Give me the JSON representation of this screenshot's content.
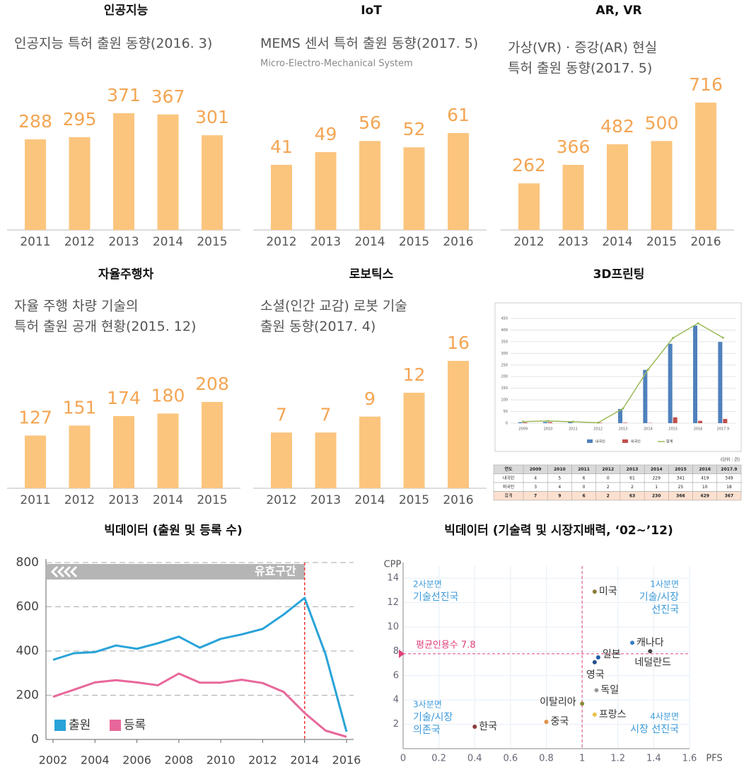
{
  "chart_data": [
    {
      "type": "bar",
      "heading": "인공지능",
      "title": "인공지능 특허 출원 동향(2016. 3)",
      "categories": [
        "2011",
        "2012",
        "2013",
        "2014",
        "2015"
      ],
      "values": [
        288,
        295,
        371,
        367,
        301
      ],
      "color": "#fbc57e",
      "label_color": "#f4a553"
    },
    {
      "type": "bar",
      "heading": "IoT",
      "title": "MEMS 센서 특허 출원 동향(2017. 5)",
      "subtitle": "Micro-Electro-Mechanical System",
      "categories": [
        "2012",
        "2013",
        "2014",
        "2015",
        "2016"
      ],
      "values": [
        41,
        49,
        56,
        52,
        61
      ],
      "color": "#fbc57e",
      "label_color": "#f4a553"
    },
    {
      "type": "bar",
      "heading": "AR, VR",
      "title": [
        "가상(VR) · 증강(AR) 현실",
        "특허 출원 동향(2017. 5)"
      ],
      "categories": [
        "2012",
        "2013",
        "2014",
        "2015",
        "2016"
      ],
      "values": [
        262,
        366,
        482,
        500,
        716
      ],
      "color": "#fbc57e",
      "label_color": "#f4a553"
    },
    {
      "type": "bar",
      "heading": "자율주행차",
      "title": [
        "자율 주행 차량 기술의",
        "특허 출원 공개 현황(2015. 12)"
      ],
      "categories": [
        "2011",
        "2012",
        "2013",
        "2014",
        "2015"
      ],
      "values": [
        127,
        151,
        174,
        180,
        208
      ],
      "color": "#fbc57e",
      "label_color": "#f4a553"
    },
    {
      "type": "bar",
      "heading": "로보틱스",
      "title": [
        "소셜(인간 교감) 로봇 기술",
        "출원 동향(2017. 4)"
      ],
      "categories": [
        "2012",
        "2013",
        "2014",
        "2015",
        "2016"
      ],
      "values": [
        7,
        7,
        9,
        12,
        16
      ],
      "color": "#fbc57e",
      "label_color": "#f4a553"
    },
    {
      "type": "combo",
      "heading": "3D프린팅",
      "categories": [
        "2009",
        "2010",
        "2011",
        "2012",
        "2013",
        "2014",
        "2015",
        "2016",
        "2017.9"
      ],
      "series": [
        {
          "name": "내국인",
          "color": "#4f81bd",
          "kind": "bar",
          "values": [
            4,
            5,
            6,
            0,
            61,
            229,
            341,
            419,
            349
          ]
        },
        {
          "name": "외국인",
          "color": "#c0504d",
          "kind": "bar",
          "values": [
            3,
            4,
            0,
            2,
            2,
            1,
            25,
            10,
            18
          ]
        },
        {
          "name": "합계",
          "color": "#9bbb59",
          "kind": "line",
          "values": [
            7,
            9,
            6,
            2,
            63,
            230,
            366,
            429,
            367
          ]
        }
      ],
      "ylim": [
        0,
        450
      ],
      "yticks": [
        0,
        50,
        100,
        150,
        200,
        250,
        300,
        350,
        400,
        450
      ],
      "grid": true,
      "table_header": "연도",
      "unit_note": "(단위 : 건)"
    },
    {
      "type": "line",
      "heading": "빅데이터 (출원 및 등록 수)",
      "x": [
        2002,
        2003,
        2004,
        2005,
        2006,
        2007,
        2008,
        2009,
        2010,
        2011,
        2012,
        2013,
        2014,
        2015,
        2016
      ],
      "series": [
        {
          "name": "출원",
          "color": "#29a3d8",
          "values": [
            360,
            390,
            395,
            425,
            410,
            435,
            465,
            415,
            455,
            475,
            500,
            565,
            640,
            385,
            35
          ]
        },
        {
          "name": "등록",
          "color": "#e8679b",
          "values": [
            193,
            225,
            258,
            268,
            258,
            245,
            298,
            257,
            257,
            270,
            255,
            215,
            120,
            40,
            12
          ]
        }
      ],
      "xlim": [
        2002,
        2016
      ],
      "xticks": [
        2002,
        2004,
        2006,
        2008,
        2010,
        2012,
        2014,
        2016
      ],
      "ylim": [
        0,
        800
      ],
      "yticks": [
        0,
        200,
        400,
        600,
        800
      ],
      "grid": true,
      "annotation": "유효구간",
      "marker_x": 2014,
      "legend": "lower left"
    },
    {
      "type": "scatter",
      "heading": "빅데이터 (기술력 및 시장지배력, ‘02~’12)",
      "xlabel": "PFS",
      "ylabel": "CPP",
      "point_labels": [
        "미국",
        "캐나다",
        "네덜란드",
        "일본",
        "영국",
        "독일",
        "이탈리아",
        "프랑스",
        "중국",
        "한국"
      ],
      "x": [
        1.07,
        1.28,
        1.38,
        1.09,
        1.07,
        1.08,
        1.0,
        1.07,
        0.8,
        0.4
      ],
      "values": [
        12.9,
        8.7,
        8.0,
        7.5,
        7.1,
        4.8,
        3.7,
        2.8,
        2.2,
        1.8
      ],
      "colors": [
        "#8b7d3a",
        "#3b7dc4",
        "#444444",
        "#1f5fa8",
        "#2a4f8a",
        "#999999",
        "#8b8b3a",
        "#e8c24a",
        "#e0904a",
        "#8b3a3a"
      ],
      "xlim": [
        0,
        1.6
      ],
      "xticks": [
        0,
        0.2,
        0.4,
        0.6,
        0.8,
        1,
        1.2,
        1.4,
        1.6
      ],
      "ylim": [
        0,
        15
      ],
      "yticks": [
        2,
        4,
        6,
        8,
        10,
        12,
        14
      ],
      "hline": 7.8,
      "hline_label": "평균인용수 7.8",
      "vline": 1,
      "quadrants": [
        [
          "1사분면",
          "기술/시장",
          "선진국"
        ],
        [
          "2사분면",
          "기술선진국"
        ],
        [
          "3사분면",
          "기술/시장",
          "의존국"
        ],
        [
          "4사분면",
          "시장 선진국"
        ]
      ]
    }
  ]
}
